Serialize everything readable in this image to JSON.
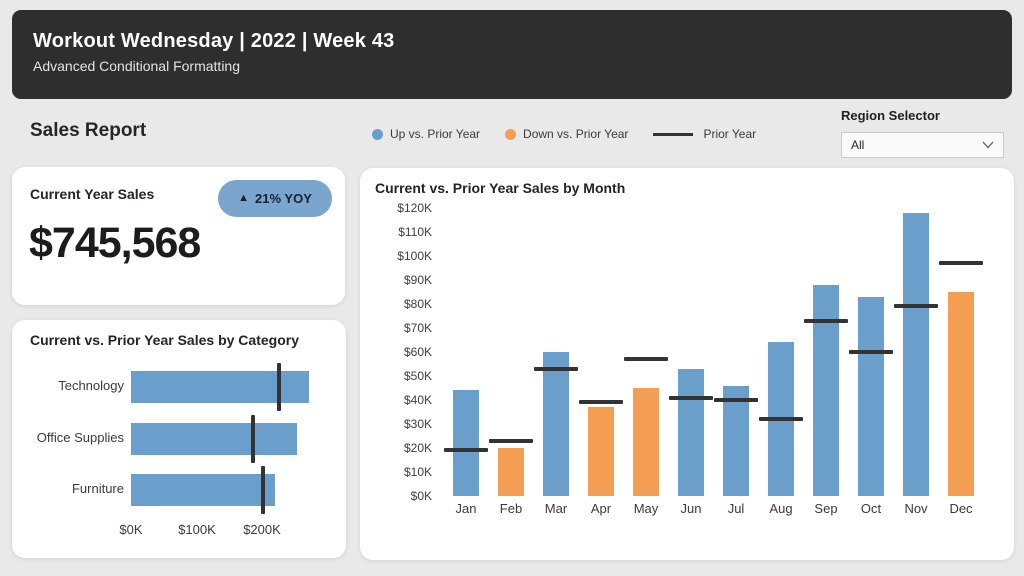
{
  "header": {
    "title": "Workout Wednesday | 2022 | Week 43",
    "subtitle": "Advanced Conditional Formatting"
  },
  "report": {
    "title": "Sales Report"
  },
  "legend": {
    "items": [
      {
        "label": "Up vs. Prior Year",
        "swatch": "dot",
        "color": "#6A9FCB"
      },
      {
        "label": "Down vs. Prior Year",
        "swatch": "dot",
        "color": "#F49E54"
      },
      {
        "label": "Prior Year",
        "swatch": "line",
        "color": "#333333"
      }
    ]
  },
  "region_selector": {
    "label": "Region Selector",
    "value": "All"
  },
  "kpi": {
    "label": "Current Year Sales",
    "badge_icon": "▲",
    "badge_text": "21% YOY",
    "badge_color": "#7AA6CE",
    "value": "$745,568"
  },
  "colors": {
    "up": "#6A9FCB",
    "down": "#F49E54",
    "prior_year_marker": "#333333",
    "header_bg": "#2e2e2e",
    "page_bg": "#e9e9e9"
  },
  "chart_data": [
    {
      "type": "bar",
      "orientation": "horizontal",
      "title": "Current vs. Prior Year Sales by Category",
      "units": "USD thousands",
      "categories": [
        "Technology",
        "Office Supplies",
        "Furniture"
      ],
      "series": [
        {
          "name": "Current Year Sales",
          "values_k": [
            272,
            254,
            220
          ]
        },
        {
          "name": "Prior Year Sales",
          "values_k": [
            226,
            187,
            202
          ]
        }
      ],
      "x_ticks": [
        "$0K",
        "$100K",
        "$200K"
      ],
      "x_tick_values_k": [
        0,
        100,
        200
      ],
      "xlim_k": [
        0,
        330
      ],
      "bar_color": "#6A9FCB",
      "marker_color": "#333333",
      "grid": false
    },
    {
      "type": "bar",
      "orientation": "vertical",
      "title": "Current vs. Prior Year Sales by Month",
      "units": "USD thousands",
      "categories": [
        "Jan",
        "Feb",
        "Mar",
        "Apr",
        "May",
        "Jun",
        "Jul",
        "Aug",
        "Sep",
        "Oct",
        "Nov",
        "Dec"
      ],
      "series": [
        {
          "name": "Current Year Sales",
          "values_k": [
            44,
            20,
            60,
            37,
            45,
            53,
            46,
            64,
            88,
            83,
            118,
            85
          ]
        },
        {
          "name": "Prior Year Sales",
          "values_k": [
            19,
            23,
            53,
            39,
            57,
            41,
            40,
            32,
            73,
            60,
            79,
            97
          ]
        }
      ],
      "y_ticks": [
        "$0K",
        "$10K",
        "$20K",
        "$30K",
        "$40K",
        "$50K",
        "$60K",
        "$70K",
        "$80K",
        "$90K",
        "$100K",
        "$110K",
        "$120K"
      ],
      "ylim_k": [
        0,
        120
      ],
      "up_color": "#6A9FCB",
      "down_color": "#F49E54",
      "marker_color": "#333333",
      "grid": false
    }
  ]
}
